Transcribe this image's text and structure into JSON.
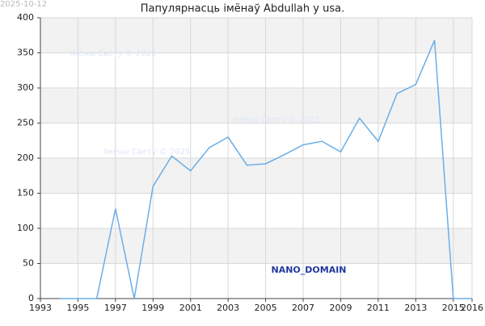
{
  "chart_data": {
    "type": "line",
    "title": "Папулярнасць імёнаў Abdullah у usa.",
    "date": "2025-10-12",
    "watermarks": [
      "Імёны Свету © 2025",
      "Імёны Свету © 2025",
      "Імёны Свету © 2025"
    ],
    "domain_label": "NANO_DOMAIN",
    "x": [
      1994,
      1995,
      1996,
      1997,
      1998,
      1999,
      2000,
      2001,
      2002,
      2003,
      2004,
      2005,
      2006,
      2007,
      2008,
      2009,
      2010,
      2011,
      2012,
      2013,
      2014,
      2015,
      2016
    ],
    "series": [
      {
        "name": "Abdullah",
        "color": "#6aaee8",
        "values": [
          0,
          0,
          0,
          128,
          0,
          160,
          203,
          182,
          215,
          230,
          190,
          192,
          205,
          219,
          224,
          209,
          257,
          224,
          292,
          305,
          368,
          0,
          0
        ]
      }
    ],
    "xlim": [
      1993,
      2016
    ],
    "xticks": [
      1993,
      1995,
      1997,
      1999,
      2001,
      2003,
      2005,
      2007,
      2009,
      2011,
      2013,
      2015,
      2016
    ],
    "ylim": [
      0,
      400
    ],
    "yticks": [
      0,
      50,
      100,
      150,
      200,
      250,
      300,
      350,
      400
    ],
    "grid": true
  }
}
